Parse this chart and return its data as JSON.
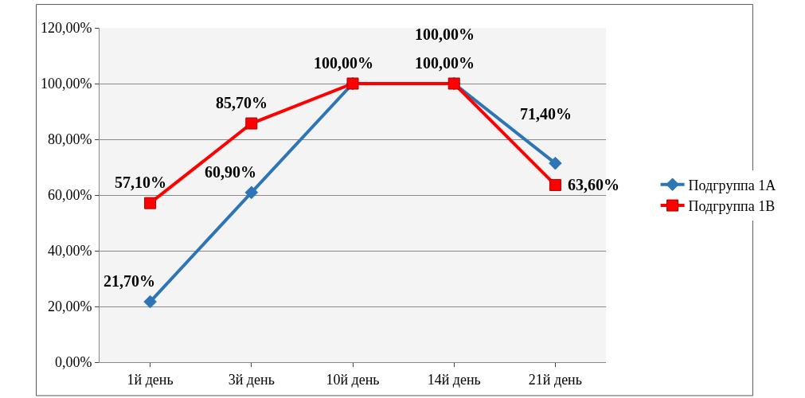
{
  "chart_data": {
    "type": "line",
    "categories": [
      "1й день",
      "3й день",
      "10й день",
      "14й день",
      "21й день"
    ],
    "series": [
      {
        "name": "Подгруппа 1А",
        "color": "#2e75b6",
        "marker": "diamond",
        "values": [
          21.7,
          60.9,
          100,
          100,
          71.4
        ],
        "value_labels": [
          "21,70%",
          "60,90%",
          "100,00%",
          "100,00%",
          "71,40%"
        ]
      },
      {
        "name": "Подгруппа 1В",
        "color": "#ff0000",
        "marker": "square",
        "values": [
          57.1,
          85.7,
          100,
          100,
          63.6
        ],
        "value_labels": [
          "57,10%",
          "85,70%",
          null,
          "100,00%",
          "63,60%"
        ]
      }
    ],
    "ylim": [
      0,
      120
    ],
    "yticks": [
      {
        "value": 0,
        "label": "0,00%"
      },
      {
        "value": 20,
        "label": "20,00%"
      },
      {
        "value": 40,
        "label": "40,00%"
      },
      {
        "value": 60,
        "label": "60,00%"
      },
      {
        "value": 80,
        "label": "80,00%"
      },
      {
        "value": 100,
        "label": "100,00%"
      },
      {
        "value": 120,
        "label": "120,00%"
      }
    ],
    "grid": "y",
    "legend": "right",
    "line_style": "solid"
  }
}
